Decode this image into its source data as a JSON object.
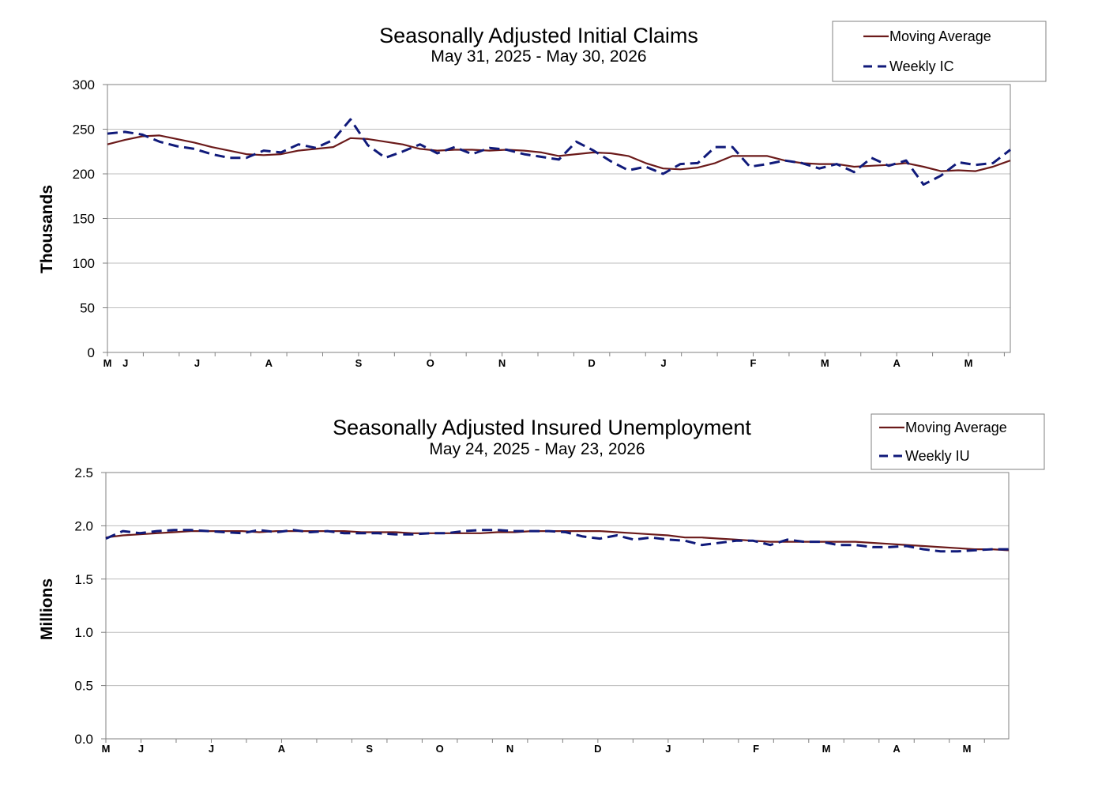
{
  "colors": {
    "moving_average": "#6b1a1a",
    "weekly": "#101a7a",
    "grid": "#bdbdbd",
    "axis": "#808080"
  },
  "chart_data": [
    {
      "type": "line",
      "title": "Seasonally Adjusted Initial Claims",
      "subtitle": "May 31, 2025 - May 30, 2026",
      "ylabel": "Thousands",
      "ylim": [
        0,
        300
      ],
      "yticks": [
        "0",
        "50",
        "100",
        "150",
        "200",
        "250",
        "300"
      ],
      "month_labels": [
        "M",
        "J",
        "J",
        "A",
        "S",
        "O",
        "N",
        "D",
        "J",
        "F",
        "M",
        "A",
        "M"
      ],
      "grid": true,
      "legend_position": "top-right",
      "series": [
        {
          "name": "Moving Average",
          "style": "solid",
          "values": [
            233,
            238,
            242,
            243,
            239,
            235,
            230,
            226,
            222,
            221,
            222,
            226,
            228,
            230,
            240,
            239,
            236,
            233,
            228,
            226,
            227,
            227,
            226,
            227,
            226,
            224,
            220,
            222,
            224,
            223,
            220,
            212,
            206,
            205,
            207,
            212,
            220,
            220,
            220,
            215,
            212,
            211,
            211,
            208,
            209,
            210,
            212,
            208,
            203,
            204,
            203,
            208,
            215
          ]
        },
        {
          "name": "Weekly IC",
          "style": "dashed",
          "values": [
            245,
            247,
            244,
            236,
            231,
            228,
            222,
            218,
            218,
            226,
            224,
            233,
            229,
            238,
            261,
            232,
            218,
            225,
            233,
            223,
            230,
            222,
            229,
            227,
            222,
            219,
            216,
            236,
            226,
            214,
            204,
            208,
            200,
            211,
            212,
            230,
            230,
            208,
            211,
            215,
            212,
            206,
            211,
            202,
            218,
            209,
            215,
            188,
            198,
            213,
            210,
            212,
            227
          ]
        }
      ]
    },
    {
      "type": "line",
      "title": "Seasonally Adjusted Insured Unemployment",
      "subtitle": "May 24, 2025 - May 23, 2026",
      "ylabel": "Millions",
      "ylim": [
        0,
        2.5
      ],
      "yticks": [
        "0.0",
        "0.5",
        "1.0",
        "1.5",
        "2.0",
        "2.5"
      ],
      "month_labels": [
        "M",
        "J",
        "J",
        "A",
        "S",
        "O",
        "N",
        "D",
        "J",
        "F",
        "M",
        "A",
        "M"
      ],
      "grid": true,
      "legend_position": "top-right",
      "series": [
        {
          "name": "Moving Average",
          "style": "solid",
          "values": [
            1.89,
            1.91,
            1.92,
            1.93,
            1.94,
            1.95,
            1.95,
            1.95,
            1.95,
            1.94,
            1.95,
            1.95,
            1.95,
            1.95,
            1.95,
            1.94,
            1.94,
            1.94,
            1.93,
            1.93,
            1.93,
            1.93,
            1.93,
            1.94,
            1.94,
            1.95,
            1.95,
            1.95,
            1.95,
            1.95,
            1.94,
            1.93,
            1.92,
            1.91,
            1.89,
            1.89,
            1.88,
            1.87,
            1.86,
            1.85,
            1.85,
            1.85,
            1.85,
            1.85,
            1.85,
            1.84,
            1.83,
            1.82,
            1.81,
            1.8,
            1.79,
            1.78,
            1.78,
            1.77
          ]
        },
        {
          "name": "Weekly IU",
          "style": "dashed",
          "values": [
            1.88,
            1.95,
            1.93,
            1.95,
            1.96,
            1.96,
            1.95,
            1.94,
            1.93,
            1.96,
            1.94,
            1.96,
            1.94,
            1.95,
            1.93,
            1.93,
            1.93,
            1.92,
            1.92,
            1.93,
            1.93,
            1.95,
            1.96,
            1.96,
            1.95,
            1.95,
            1.95,
            1.94,
            1.9,
            1.88,
            1.91,
            1.87,
            1.89,
            1.87,
            1.86,
            1.82,
            1.84,
            1.86,
            1.86,
            1.82,
            1.87,
            1.85,
            1.85,
            1.82,
            1.82,
            1.8,
            1.8,
            1.81,
            1.78,
            1.76,
            1.76,
            1.77,
            1.78,
            1.78
          ]
        }
      ]
    }
  ]
}
